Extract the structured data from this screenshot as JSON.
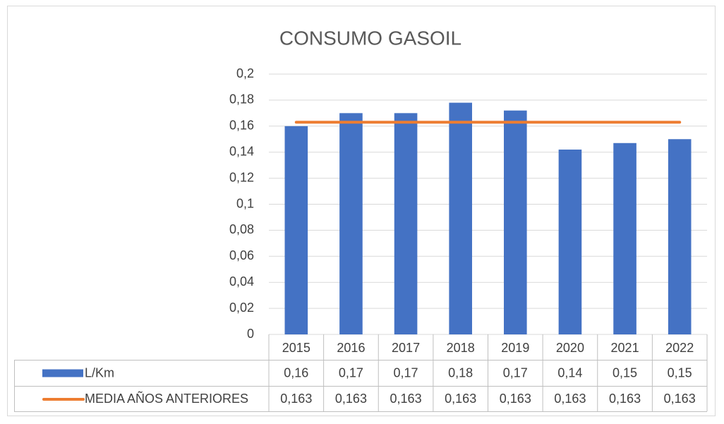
{
  "chart_data": {
    "type": "bar",
    "title": "CONSUMO GASOIL",
    "categories": [
      "2015",
      "2016",
      "2017",
      "2018",
      "2019",
      "2020",
      "2021",
      "2022"
    ],
    "series": [
      {
        "name": "L/Km",
        "type": "bar",
        "color": "#4472c4",
        "values": [
          0.16,
          0.17,
          0.17,
          0.178,
          0.172,
          0.142,
          0.147,
          0.15
        ],
        "value_labels": [
          "0,16",
          "0,17",
          "0,17",
          "0,18",
          "0,17",
          "0,14",
          "0,15",
          "0,15"
        ]
      },
      {
        "name": "MEDIA AÑOS ANTERIORES",
        "type": "line",
        "color": "#ed7d31",
        "values": [
          0.163,
          0.163,
          0.163,
          0.163,
          0.163,
          0.163,
          0.163,
          0.163
        ],
        "value_labels": [
          "0,163",
          "0,163",
          "0,163",
          "0,163",
          "0,163",
          "0,163",
          "0,163",
          "0,163"
        ]
      }
    ],
    "ylim": [
      0,
      0.2
    ],
    "yticks": [
      0,
      {
        "value": 0.02,
        "label": "0,02"
      },
      {
        "value": 0.04,
        "label": "0,04"
      },
      {
        "value": 0.06,
        "label": "0,06"
      },
      {
        "value": 0.08,
        "label": "0,08"
      },
      {
        "value": 0.1,
        "label": "0,1"
      },
      {
        "value": 0.12,
        "label": "0,12"
      },
      {
        "value": 0.14,
        "label": "0,14"
      },
      {
        "value": 0.16,
        "label": "0,16"
      },
      {
        "value": 0.18,
        "label": "0,18"
      },
      {
        "value": 0.2,
        "label": "0,2"
      }
    ],
    "grid": true,
    "legend": "data-table"
  }
}
